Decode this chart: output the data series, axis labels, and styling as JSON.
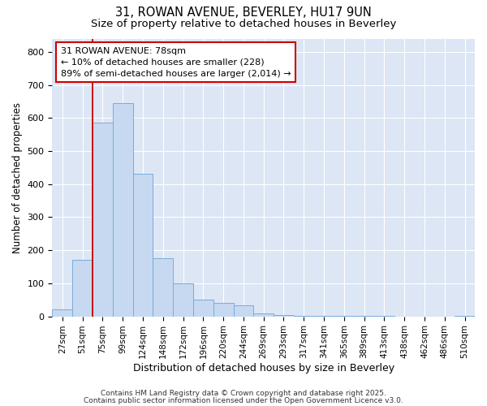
{
  "title1": "31, ROWAN AVENUE, BEVERLEY, HU17 9UN",
  "title2": "Size of property relative to detached houses in Beverley",
  "xlabel": "Distribution of detached houses by size in Beverley",
  "ylabel": "Number of detached properties",
  "bins": [
    "27sqm",
    "51sqm",
    "75sqm",
    "99sqm",
    "124sqm",
    "148sqm",
    "172sqm",
    "196sqm",
    "220sqm",
    "244sqm",
    "269sqm",
    "293sqm",
    "317sqm",
    "341sqm",
    "365sqm",
    "389sqm",
    "413sqm",
    "438sqm",
    "462sqm",
    "486sqm",
    "510sqm"
  ],
  "values": [
    20,
    170,
    585,
    645,
    430,
    175,
    100,
    50,
    40,
    33,
    10,
    5,
    2,
    2,
    2,
    2,
    2,
    0,
    0,
    0,
    2
  ],
  "bar_color": "#c6d9f0",
  "bar_edge_color": "#7aabdc",
  "vline_color": "#cc0000",
  "annotation_text": "31 ROWAN AVENUE: 78sqm\n← 10% of detached houses are smaller (228)\n89% of semi-detached houses are larger (2,014) →",
  "annotation_box_color": "#ffffff",
  "annotation_box_edge": "#cc0000",
  "ylim": [
    0,
    840
  ],
  "yticks": [
    0,
    100,
    200,
    300,
    400,
    500,
    600,
    700,
    800
  ],
  "fig_background": "#ffffff",
  "axes_background": "#dce6f5",
  "grid_color": "#ffffff",
  "footer1": "Contains HM Land Registry data © Crown copyright and database right 2025.",
  "footer2": "Contains public sector information licensed under the Open Government Licence v3.0."
}
